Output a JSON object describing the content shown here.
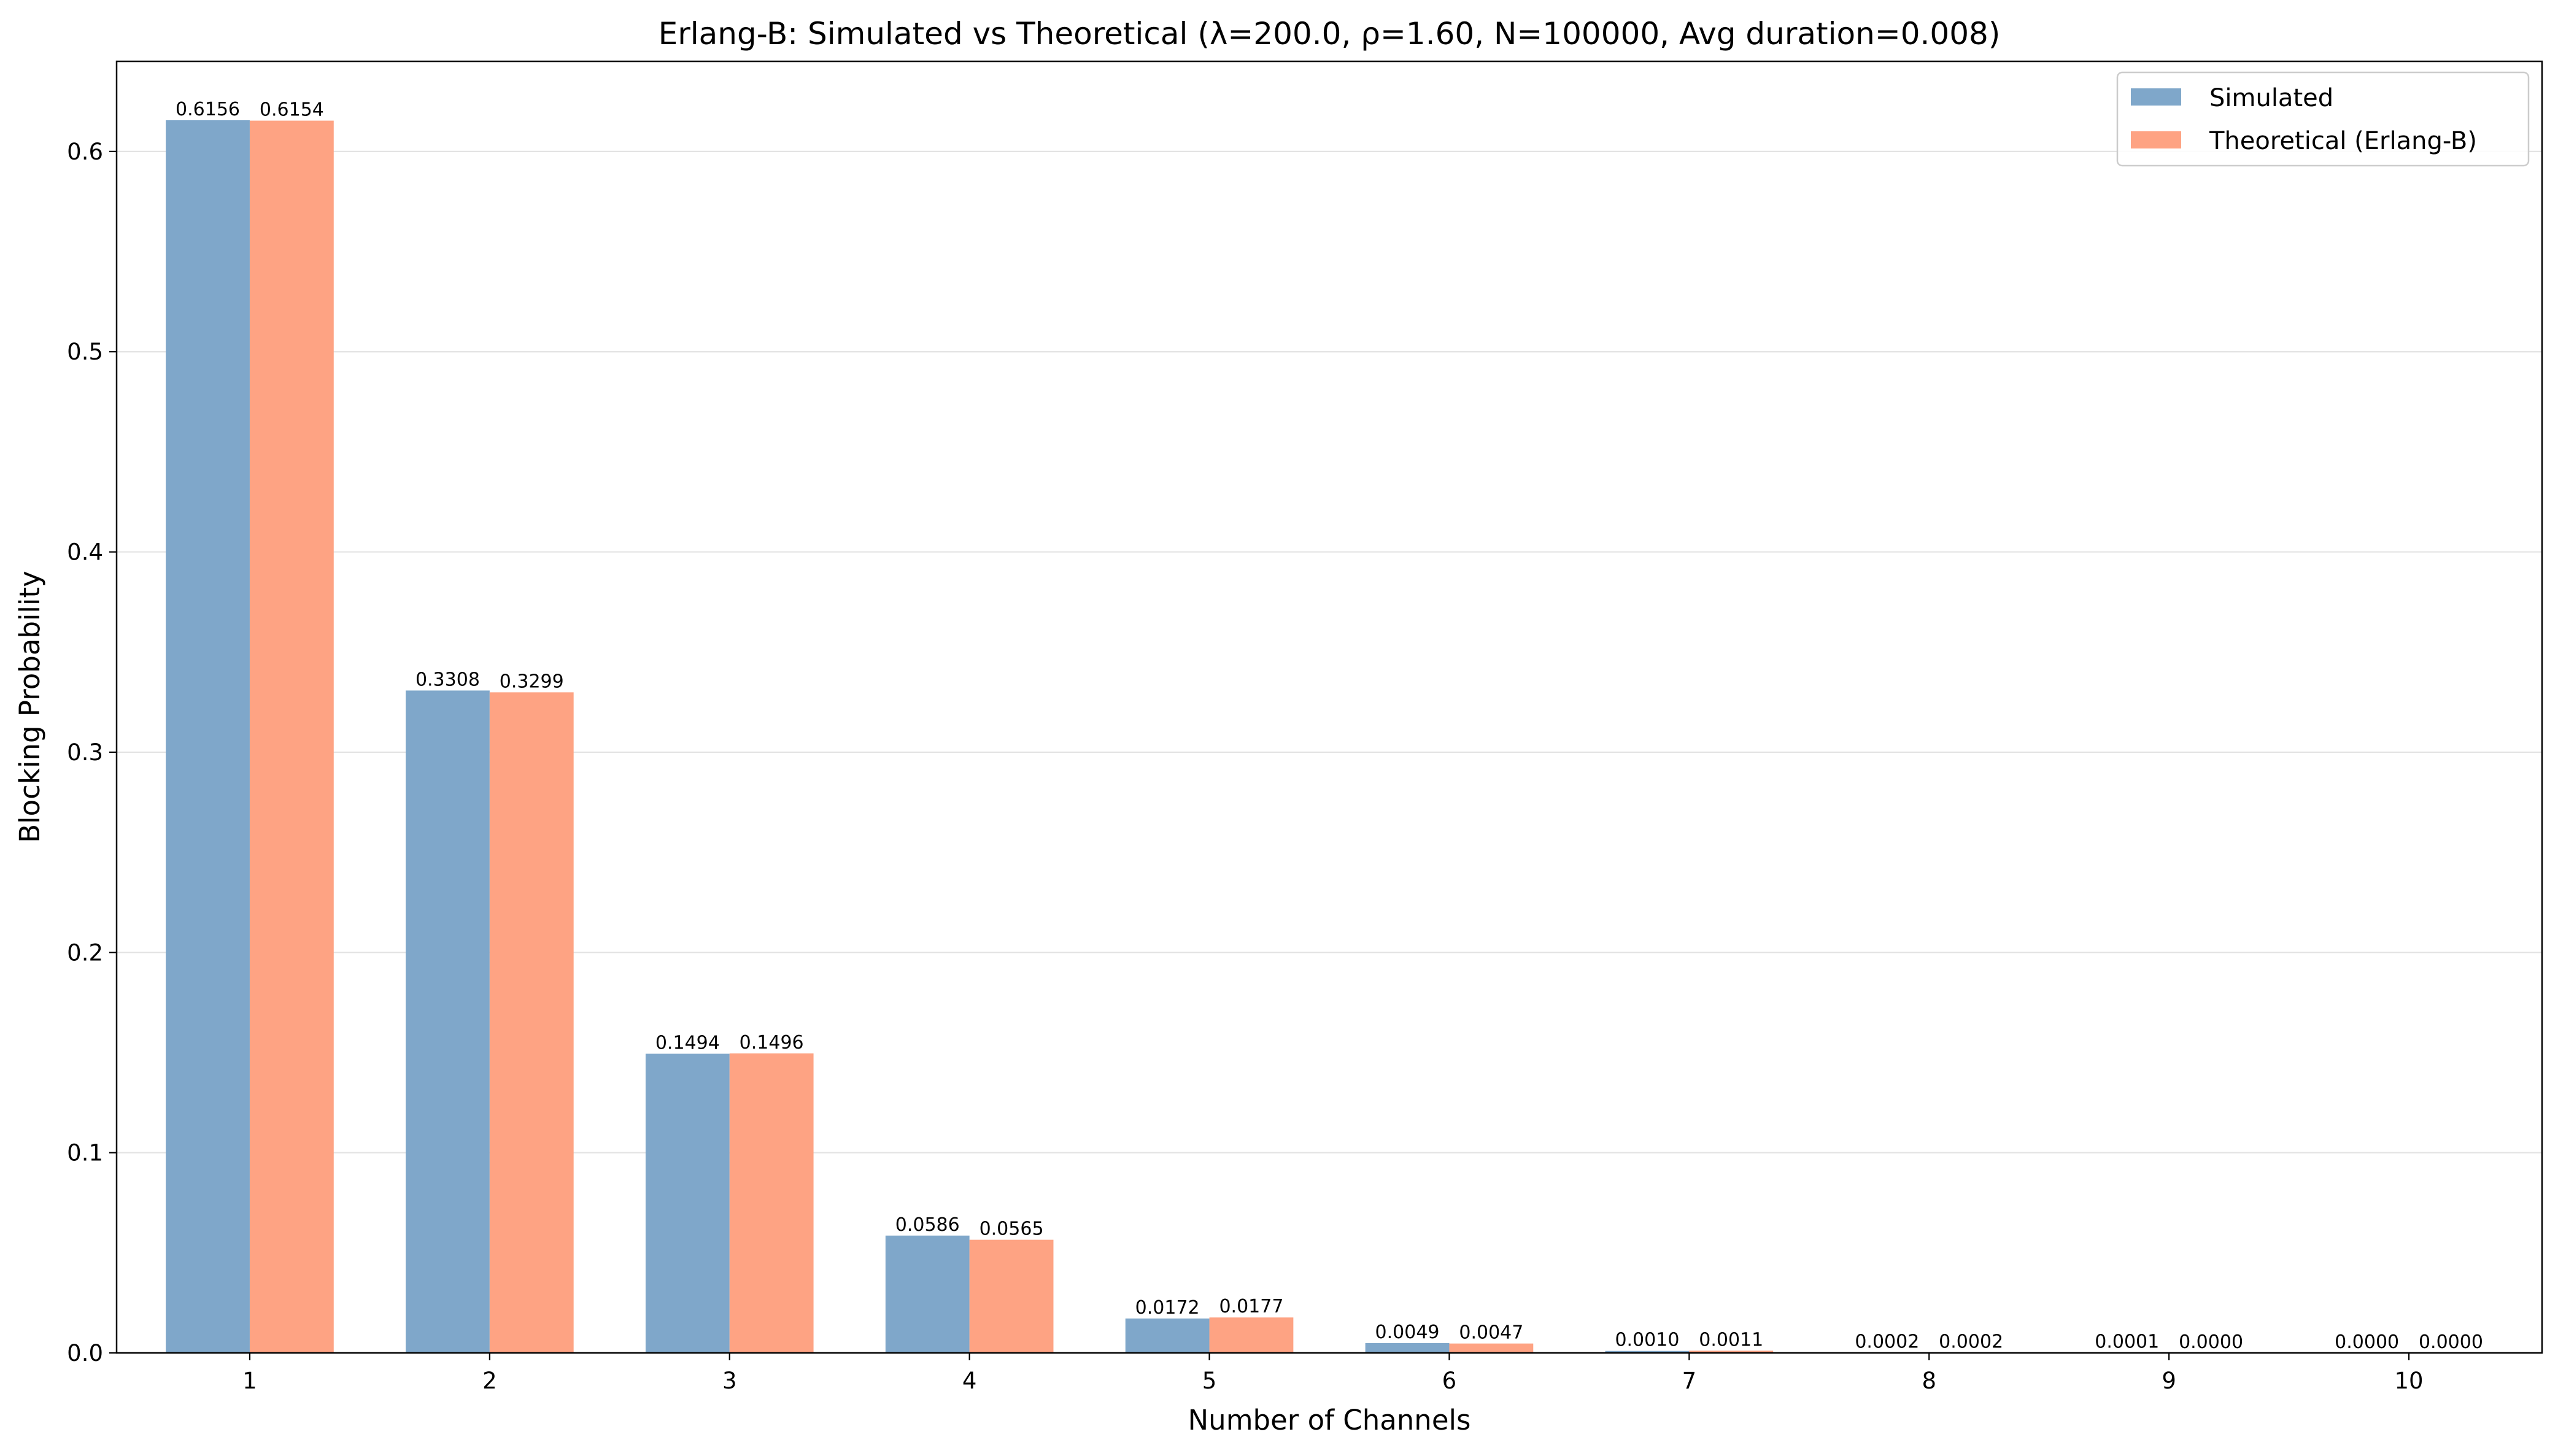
{
  "chart_data": {
    "type": "bar",
    "title": "Erlang-B: Simulated vs Theoretical (λ=200.0, ρ=1.60, N=100000, Avg duration=0.008)",
    "xlabel": "Number of Channels",
    "ylabel": "Blocking Probability",
    "categories": [
      "1",
      "2",
      "3",
      "4",
      "5",
      "6",
      "7",
      "8",
      "9",
      "10"
    ],
    "ylim": [
      0,
      0.645
    ],
    "yticks": [
      0.0,
      0.1,
      0.2,
      0.3,
      0.4,
      0.5,
      0.6
    ],
    "ytick_labels": [
      "0.0",
      "0.1",
      "0.2",
      "0.3",
      "0.4",
      "0.5",
      "0.6"
    ],
    "grid": "horizontal",
    "legend_position": "top-right",
    "series": [
      {
        "name": "Simulated",
        "color": "#7fa7ca",
        "values": [
          0.6156,
          0.3308,
          0.1494,
          0.0586,
          0.0172,
          0.0049,
          0.001,
          0.0002,
          0.0001,
          0.0
        ],
        "labels": [
          "0.6156",
          "0.3308",
          "0.1494",
          "0.0586",
          "0.0172",
          "0.0049",
          "0.0010",
          "0.0002",
          "0.0001",
          "0.0000"
        ]
      },
      {
        "name": "Theoretical (Erlang-B)",
        "color": "#fea383",
        "values": [
          0.6154,
          0.3299,
          0.1496,
          0.0565,
          0.0177,
          0.0047,
          0.0011,
          0.0002,
          0.0,
          0.0
        ],
        "labels": [
          "0.6154",
          "0.3299",
          "0.1496",
          "0.0565",
          "0.0177",
          "0.0047",
          "0.0011",
          "0.0002",
          "0.0000",
          "0.0000"
        ]
      }
    ]
  }
}
